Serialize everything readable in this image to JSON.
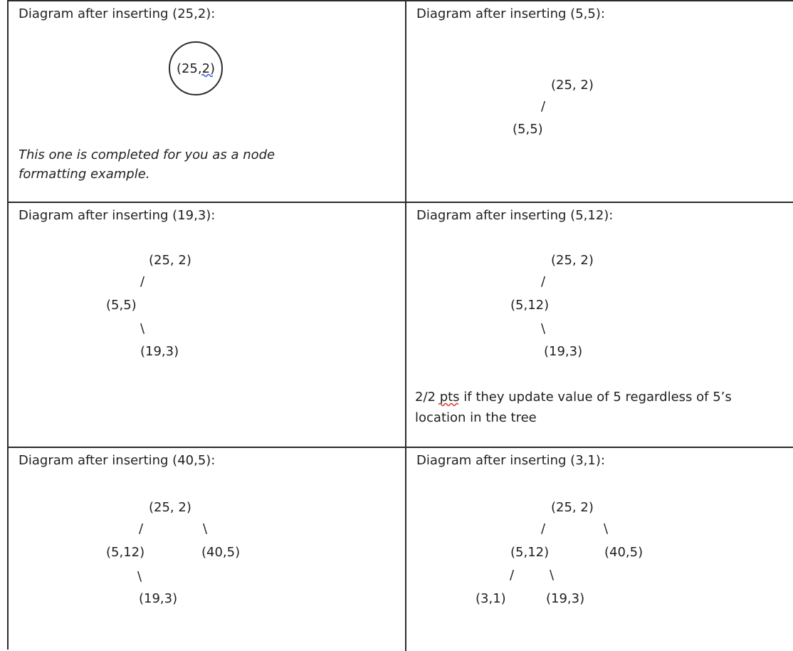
{
  "cells": [
    {
      "heading": "Diagram after inserting (25,2):",
      "root_node": "(25,2)",
      "note": "This one is completed for you as a node\nformatting example."
    },
    {
      "heading": "Diagram after inserting (5,5):",
      "nodes": {
        "root": "(25, 2)",
        "left": "(5,5)"
      },
      "edges": {
        "left": "/"
      }
    },
    {
      "heading": "Diagram after inserting (19,3):",
      "nodes": {
        "root": "(25, 2)",
        "left": "(5,5)",
        "left_right": "(19,3)"
      },
      "edges": {
        "left": "/",
        "left_right": "\\"
      }
    },
    {
      "heading": "Diagram after inserting (5,12):",
      "nodes": {
        "root": "(25, 2)",
        "left": "(5,12)",
        "left_right": "(19,3)"
      },
      "edges": {
        "left": "/",
        "left_right": "\\"
      },
      "note": "2/2 pts if they update value of 5 regardless of 5’s\nlocation in the tree"
    },
    {
      "heading": "Diagram after inserting (40,5):",
      "nodes": {
        "root": "(25, 2)",
        "left": "(5,12)",
        "right": "(40,5)",
        "left_right": "(19,3)"
      },
      "edges": {
        "left": "/",
        "right": "\\",
        "left_right": "\\"
      }
    },
    {
      "heading": "Diagram after inserting (3,1):",
      "nodes": {
        "root": "(25, 2)",
        "left": "(5,12)",
        "right": "(40,5)",
        "left_left": "(3,1)",
        "left_right": "(19,3)"
      },
      "edges": {
        "left": "/",
        "right": "\\",
        "left_left": "/",
        "left_right": "\\"
      }
    }
  ],
  "colors": {
    "border": "#2b2b2b",
    "text": "#1f1f1f",
    "spellcheck_blue": "#3b5bd6",
    "spellcheck_red": "#d33a2c"
  }
}
